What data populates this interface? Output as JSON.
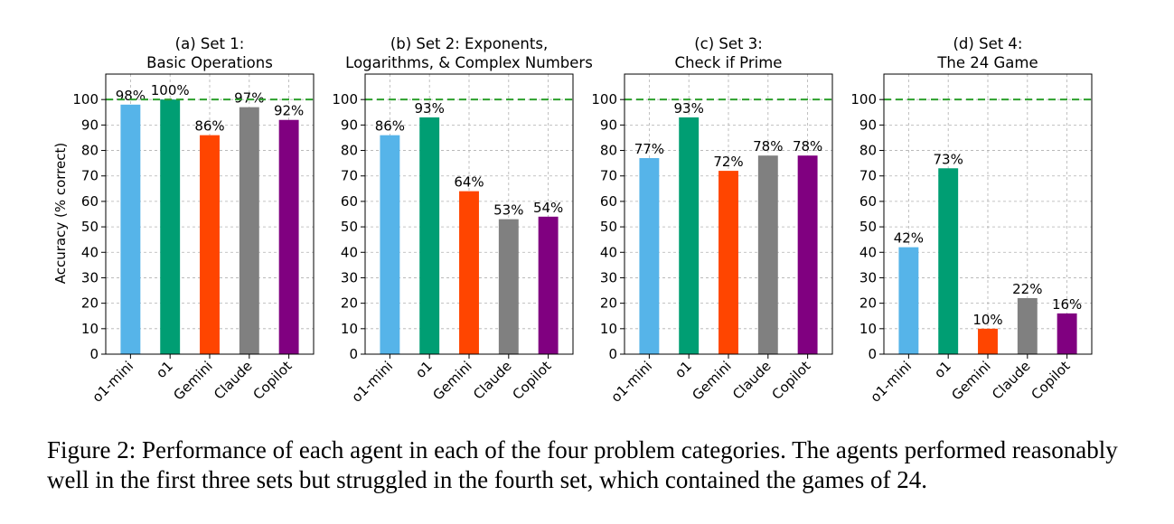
{
  "chart_data": [
    {
      "type": "bar",
      "title": [
        "(a) Set 1:",
        "Basic Operations"
      ],
      "ylabel": "Accuracy (% correct)",
      "categories": [
        "o1-mini",
        "o1",
        "Gemini",
        "Claude",
        "Copilot"
      ],
      "values": [
        98,
        100,
        86,
        97,
        92
      ],
      "labels": [
        "98%",
        "100%",
        "86%",
        "97%",
        "92%"
      ],
      "colors": [
        "#56B4E9",
        "#009E73",
        "#FF4500",
        "#808080",
        "#800080"
      ],
      "ylim": [
        0,
        110
      ],
      "yticks": [
        0,
        10,
        20,
        30,
        40,
        50,
        60,
        70,
        80,
        90,
        100
      ],
      "reference_line": 100,
      "reference_color": "#2CA02C",
      "grid": true
    },
    {
      "type": "bar",
      "title": [
        "(b) Set 2: Exponents,",
        "Logarithms, & Complex Numbers"
      ],
      "ylabel": "",
      "categories": [
        "o1-mini",
        "o1",
        "Gemini",
        "Claude",
        "Copilot"
      ],
      "values": [
        86,
        93,
        64,
        53,
        54
      ],
      "labels": [
        "86%",
        "93%",
        "64%",
        "53%",
        "54%"
      ],
      "colors": [
        "#56B4E9",
        "#009E73",
        "#FF4500",
        "#808080",
        "#800080"
      ],
      "ylim": [
        0,
        110
      ],
      "yticks": [
        0,
        10,
        20,
        30,
        40,
        50,
        60,
        70,
        80,
        90,
        100
      ],
      "reference_line": 100,
      "reference_color": "#2CA02C",
      "grid": true
    },
    {
      "type": "bar",
      "title": [
        "(c) Set 3:",
        "Check if Prime"
      ],
      "ylabel": "",
      "categories": [
        "o1-mini",
        "o1",
        "Gemini",
        "Claude",
        "Copilot"
      ],
      "values": [
        77,
        93,
        72,
        78,
        78
      ],
      "labels": [
        "77%",
        "93%",
        "72%",
        "78%",
        "78%"
      ],
      "colors": [
        "#56B4E9",
        "#009E73",
        "#FF4500",
        "#808080",
        "#800080"
      ],
      "ylim": [
        0,
        110
      ],
      "yticks": [
        0,
        10,
        20,
        30,
        40,
        50,
        60,
        70,
        80,
        90,
        100
      ],
      "reference_line": 100,
      "reference_color": "#2CA02C",
      "grid": true
    },
    {
      "type": "bar",
      "title": [
        "(d) Set 4:",
        "The 24 Game"
      ],
      "ylabel": "",
      "categories": [
        "o1-mini",
        "o1",
        "Gemini",
        "Claude",
        "Copilot"
      ],
      "values": [
        42,
        73,
        10,
        22,
        16
      ],
      "labels": [
        "42%",
        "73%",
        "10%",
        "22%",
        "16%"
      ],
      "colors": [
        "#56B4E9",
        "#009E73",
        "#FF4500",
        "#808080",
        "#800080"
      ],
      "ylim": [
        0,
        110
      ],
      "yticks": [
        0,
        10,
        20,
        30,
        40,
        50,
        60,
        70,
        80,
        90,
        100
      ],
      "reference_line": 100,
      "reference_color": "#2CA02C",
      "grid": true
    }
  ],
  "caption": "Figure 2: Performance of each agent in each of the four problem categories. The agents performed reasonably well in the first three sets but struggled in the fourth set, which contained the games of 24."
}
